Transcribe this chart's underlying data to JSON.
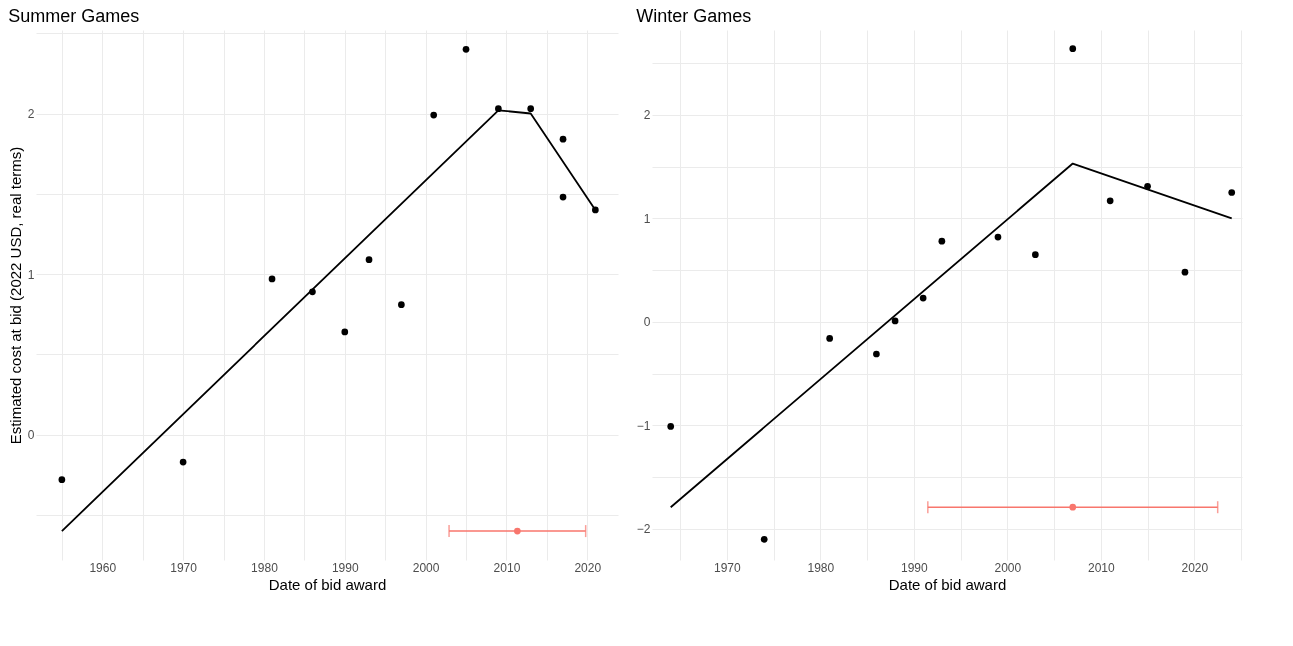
{
  "chart_data": [
    {
      "type": "scatter",
      "title": "Summer Games",
      "xlabel": "Date of bid award",
      "ylabel": "Estimated cost at bid (2022 USD, real terms)",
      "grid": true,
      "xlim": [
        1951.8,
        2023.8
      ],
      "ylim": [
        -0.78,
        2.52
      ],
      "xticks": [
        {
          "value": 1955,
          "label": null
        },
        1960,
        {
          "value": 1965,
          "label": null
        },
        1970,
        {
          "value": 1975,
          "label": null
        },
        1980,
        {
          "value": 1985,
          "label": null
        },
        1990,
        {
          "value": 1995,
          "label": null
        },
        2000,
        {
          "value": 2005,
          "label": null
        },
        2010,
        {
          "value": 2015,
          "label": null
        },
        2020
      ],
      "yticks": [
        {
          "value": -0.5,
          "label": null
        },
        0,
        {
          "value": 0.5,
          "label": null
        },
        1,
        {
          "value": 1.5,
          "label": null
        },
        2,
        {
          "value": 2.5,
          "label": null
        }
      ],
      "series": [
        {
          "marker": "circle",
          "color": "#000000",
          "x": [
            1955,
            1970,
            1981,
            1986,
            1990,
            1993,
            1997,
            2001,
            2005,
            2009,
            2013,
            2017,
            2017,
            2021
          ],
          "values": [
            -0.28,
            -0.17,
            0.97,
            0.89,
            0.64,
            1.09,
            0.81,
            1.99,
            2.4,
            2.03,
            2.03,
            1.84,
            1.48,
            1.4
          ]
        },
        {
          "type": "line",
          "color": "#000000",
          "line_style": "solid",
          "x": [
            1955,
            2009,
            2013,
            2021
          ],
          "values": [
            -0.6,
            2.02,
            2.0,
            1.4
          ]
        },
        {
          "marker": "circle",
          "color": "#f8766d",
          "x": [
            2011.35
          ],
          "values": [
            -0.6
          ],
          "xerrors": [
            [
              2002.9,
              2019.8
            ]
          ]
        }
      ]
    },
    {
      "type": "scatter",
      "title": "Winter Games",
      "xlabel": "Date of bid award",
      "grid": true,
      "xlim": [
        1962,
        2025.1
      ],
      "ylim": [
        -2.3,
        2.82
      ],
      "xticks": [
        {
          "value": 1965,
          "label": null
        },
        1970,
        {
          "value": 1975,
          "label": null
        },
        1980,
        {
          "value": 1985,
          "label": null
        },
        1990,
        {
          "value": 1995,
          "label": null
        },
        2000,
        {
          "value": 2005,
          "label": null
        },
        2010,
        {
          "value": 2015,
          "label": null
        },
        2020,
        {
          "value": 2025,
          "label": null
        }
      ],
      "yticks": [
        {
          "value": -2,
          "label": "−2"
        },
        {
          "value": -1.5,
          "label": null
        },
        {
          "value": -1,
          "label": "−1"
        },
        {
          "value": -0.5,
          "label": null
        },
        0,
        {
          "value": 0.5,
          "label": null
        },
        1,
        {
          "value": 1.5,
          "label": null
        },
        2,
        {
          "value": 2.5,
          "label": null
        }
      ],
      "series": [
        {
          "marker": "circle",
          "color": "#000000",
          "x": [
            1964,
            1974,
            1981,
            1986,
            1988,
            1991,
            1993,
            1999,
            2003,
            2007,
            2011,
            2015,
            2019,
            2024
          ],
          "values": [
            -1.01,
            -2.1,
            -0.16,
            -0.31,
            0.01,
            0.23,
            0.78,
            0.82,
            0.65,
            2.64,
            1.17,
            1.31,
            0.48,
            1.25
          ]
        },
        {
          "type": "line",
          "color": "#000000",
          "line_style": "solid",
          "x": [
            1964,
            2007,
            2024
          ],
          "values": [
            -1.79,
            1.53,
            1.0
          ]
        },
        {
          "marker": "circle",
          "color": "#f8766d",
          "x": [
            2007
          ],
          "values": [
            -1.79
          ],
          "xerrors": [
            [
              1991.5,
              2022.5
            ]
          ]
        }
      ]
    }
  ]
}
